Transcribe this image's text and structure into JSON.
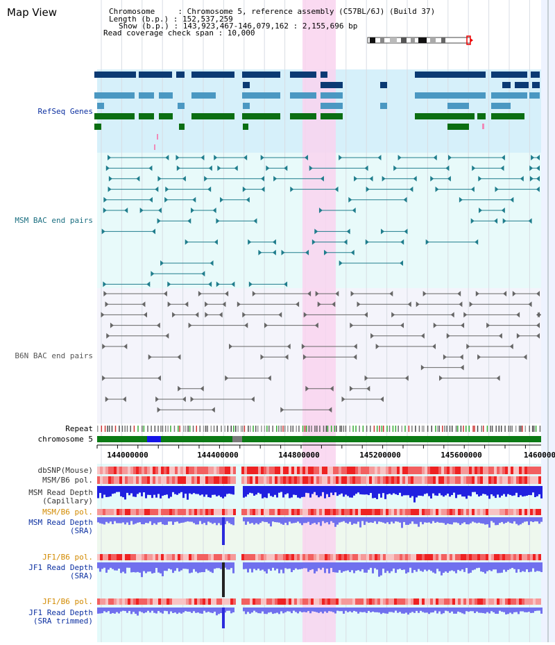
{
  "title": "Map View",
  "header": {
    "lines": [
      "Chromosome     : Chromosome 5, reference assembly (C57BL/6J) (Build 37)",
      "Length (b.p.) : 152,537,259",
      "Show (b.p.) : 143,923,467-146,079,162 : 2,155,696 bp",
      "Read coverage check span : 10,000"
    ]
  },
  "tracks": {
    "refseq": "RefSeq Genes",
    "msm_bac": "MSM BAC end pairs",
    "b6n_bac": "B6N BAC end pairs",
    "repeat": "Repeat",
    "chromosome": "chromosome 5",
    "dbsnp": "dbSNP(Mouse)",
    "msm_b6_pol": "MSM/B6 pol.",
    "msm_depth_cap_1": "MSM Read Depth",
    "msm_depth_cap_2": "(Capillary)",
    "msm_b6_pol_2": "MSM/B6 pol.",
    "msm_depth_sra_1": "MSM Read Depth",
    "msm_depth_sra_2": "(SRA)",
    "jf1_b6_pol": "JF1/B6 pol.",
    "jf1_depth_sra_1": "JF1 Read Depth",
    "jf1_depth_sra_2": "(SRA)",
    "jf1_b6_pol_2": "JF1/B6 pol.",
    "jf1_depth_trim_1": "JF1 Read Depth",
    "jf1_depth_trim_2": "(SRA trimmed)"
  },
  "axis": {
    "ticks": [
      "144000000",
      "144400000",
      "144800000",
      "145200000",
      "145600000",
      "1460000"
    ]
  },
  "colors": {
    "refseq_bg": "#d6f0fa",
    "msm_bg": "#e8fafa",
    "b6n_bg": "#f4f4fb",
    "highlight": "#f8d8f0",
    "gene_dark": "#0b3a73",
    "gene_mid": "#4b98c2",
    "gene_green": "#0b6e12",
    "bac_msm": "#1f7d8c",
    "bac_b6n": "#666666",
    "chrom": "#0b7a14",
    "depth_blue": "#2020e0",
    "depth_light": "#7070ee",
    "label_navy": "#0b2fa0",
    "label_orange": "#d28a00",
    "label_teal": "#1a6e80"
  }
}
